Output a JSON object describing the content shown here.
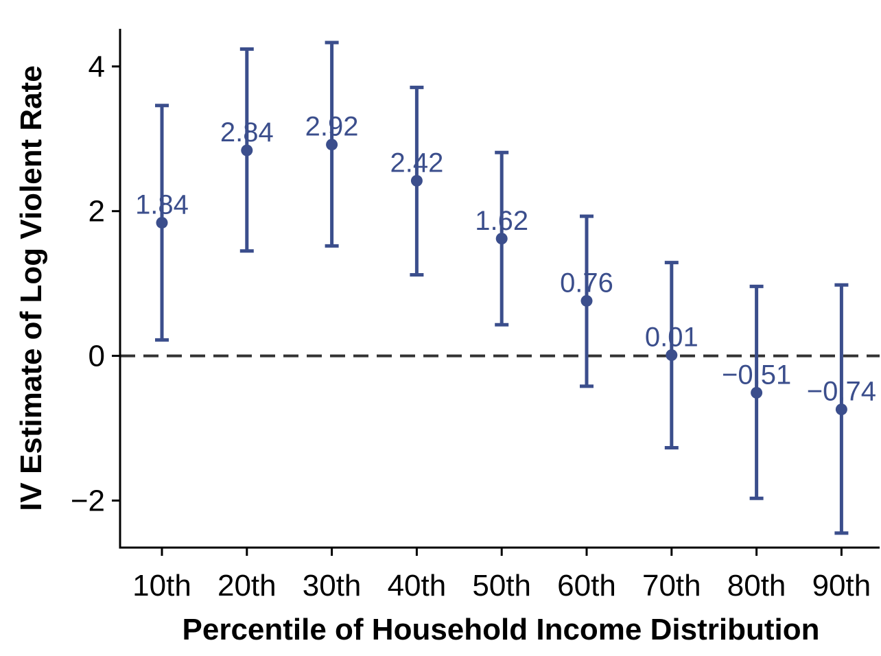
{
  "chart_data": {
    "type": "scatter",
    "title": "",
    "xlabel": "Percentile of Household Income Distribution",
    "ylabel": "IV Estimate of Log Violent Rate",
    "categories": [
      "10th",
      "20th",
      "30th",
      "40th",
      "50th",
      "60th",
      "70th",
      "80th",
      "90th"
    ],
    "values": [
      1.84,
      2.84,
      2.92,
      2.42,
      1.62,
      0.76,
      0.01,
      -0.51,
      -0.74
    ],
    "value_labels": [
      "1.84",
      "2.84",
      "2.92",
      "2.42",
      "1.62",
      "0.76",
      "0.01",
      "−0.51",
      "−0.74"
    ],
    "ci_lower": [
      0.22,
      1.45,
      1.52,
      1.12,
      0.43,
      -0.42,
      -1.27,
      -1.97,
      -2.45
    ],
    "ci_upper": [
      3.46,
      4.24,
      4.33,
      3.71,
      2.81,
      1.93,
      1.29,
      0.96,
      0.98
    ],
    "yticks": [
      -2,
      0,
      2,
      4
    ],
    "ytick_labels": [
      "−2",
      "0",
      "2",
      "4"
    ],
    "ylim": [
      -2.65,
      4.52
    ],
    "reference_line": 0,
    "grid": false,
    "legend": "none",
    "colors": {
      "series": "#3b4e8c",
      "axis": "#000000",
      "reference": "#333333"
    }
  }
}
